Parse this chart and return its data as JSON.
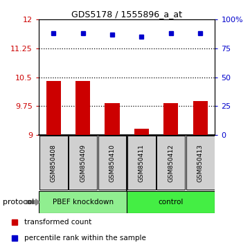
{
  "title": "GDS5178 / 1555896_a_at",
  "samples": [
    "GSM850408",
    "GSM850409",
    "GSM850410",
    "GSM850411",
    "GSM850412",
    "GSM850413"
  ],
  "bar_values": [
    10.4,
    10.4,
    9.82,
    9.15,
    9.83,
    9.88
  ],
  "percentile_values": [
    88,
    88,
    87,
    85,
    88,
    88
  ],
  "bar_color": "#cc0000",
  "dot_color": "#0000cc",
  "ylim_left": [
    9.0,
    12.0
  ],
  "ylim_right": [
    0,
    100
  ],
  "yticks_left": [
    9.0,
    9.75,
    10.5,
    11.25,
    12.0
  ],
  "ytick_labels_left": [
    "9",
    "9.75",
    "10.5",
    "11.25",
    "12"
  ],
  "yticks_right": [
    0,
    25,
    50,
    75,
    100
  ],
  "ytick_labels_right": [
    "0",
    "25",
    "50",
    "75",
    "100%"
  ],
  "hlines": [
    9.75,
    10.5,
    11.25
  ],
  "groups": [
    {
      "label": "PBEF knockdown",
      "start": 0,
      "end": 3,
      "color": "#90ee90"
    },
    {
      "label": "control",
      "start": 3,
      "end": 6,
      "color": "#44ee44"
    }
  ],
  "protocol_label": "protocol",
  "legend_bar_label": "transformed count",
  "legend_dot_label": "percentile rank within the sample",
  "bar_width": 0.5
}
